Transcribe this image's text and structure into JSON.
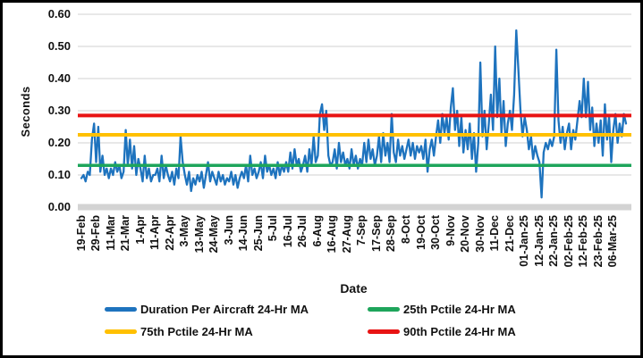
{
  "chart_data": {
    "type": "line",
    "title": "",
    "xlabel": "Date",
    "ylabel": "Seconds",
    "ylim": [
      0,
      0.6
    ],
    "grid": true,
    "legend_position": "bottom",
    "ytick_labels": [
      "0.00",
      "0.10",
      "0.20",
      "0.30",
      "0.40",
      "0.50",
      "0.60"
    ],
    "x_tick_labels": [
      "19-Feb",
      "29-Feb",
      "11-Mar",
      "21-Mar",
      "1-Apr",
      "11-Apr",
      "22-Apr",
      "3-May",
      "13-May",
      "24-May",
      "3-Jun",
      "14-Jun",
      "25-Jun",
      "5-Jul",
      "16-Jul",
      "26-Jul",
      "6-Aug",
      "16-Aug",
      "27-Aug",
      "7-Sep",
      "17-Sep",
      "28-Sep",
      "8-Oct",
      "19-Oct",
      "30-Oct",
      "9-Nov",
      "20-Nov",
      "30-Nov",
      "11-Dec",
      "21-Dec",
      "01-Jan-25",
      "12-Jan-25",
      "22-Jan-25",
      "02-Feb-25",
      "12-Feb-25",
      "23-Feb-25",
      "06-Mar-25"
    ],
    "points_per_tick": 7,
    "series": [
      {
        "name": "Duration Per Aircraft 24-Hr MA",
        "color": "#1E73BE",
        "values": [
          0.09,
          0.1,
          0.08,
          0.11,
          0.1,
          0.21,
          0.26,
          0.14,
          0.25,
          0.11,
          0.16,
          0.1,
          0.12,
          0.09,
          0.12,
          0.1,
          0.14,
          0.11,
          0.13,
          0.09,
          0.11,
          0.24,
          0.13,
          0.21,
          0.12,
          0.19,
          0.1,
          0.15,
          0.12,
          0.08,
          0.16,
          0.09,
          0.12,
          0.08,
          0.1,
          0.1,
          0.12,
          0.08,
          0.16,
          0.09,
          0.13,
          0.1,
          0.08,
          0.11,
          0.07,
          0.12,
          0.09,
          0.22,
          0.14,
          0.1,
          0.07,
          0.11,
          0.05,
          0.09,
          0.07,
          0.1,
          0.08,
          0.11,
          0.06,
          0.1,
          0.14,
          0.08,
          0.11,
          0.09,
          0.07,
          0.11,
          0.08,
          0.1,
          0.07,
          0.09,
          0.08,
          0.11,
          0.07,
          0.1,
          0.06,
          0.09,
          0.11,
          0.09,
          0.13,
          0.08,
          0.16,
          0.1,
          0.12,
          0.09,
          0.11,
          0.14,
          0.09,
          0.16,
          0.11,
          0.13,
          0.1,
          0.12,
          0.09,
          0.14,
          0.1,
          0.13,
          0.11,
          0.14,
          0.11,
          0.17,
          0.12,
          0.18,
          0.13,
          0.15,
          0.11,
          0.13,
          0.16,
          0.11,
          0.18,
          0.13,
          0.22,
          0.14,
          0.16,
          0.29,
          0.32,
          0.24,
          0.3,
          0.16,
          0.13,
          0.14,
          0.18,
          0.12,
          0.2,
          0.14,
          0.17,
          0.13,
          0.15,
          0.12,
          0.18,
          0.13,
          0.16,
          0.12,
          0.15,
          0.13,
          0.2,
          0.14,
          0.21,
          0.15,
          0.18,
          0.13,
          0.16,
          0.22,
          0.14,
          0.23,
          0.16,
          0.2,
          0.14,
          0.29,
          0.17,
          0.14,
          0.21,
          0.16,
          0.19,
          0.15,
          0.18,
          0.21,
          0.16,
          0.2,
          0.15,
          0.19,
          0.17,
          0.19,
          0.15,
          0.21,
          0.11,
          0.18,
          0.21,
          0.16,
          0.22,
          0.27,
          0.2,
          0.29,
          0.23,
          0.28,
          0.21,
          0.31,
          0.37,
          0.24,
          0.3,
          0.19,
          0.28,
          0.17,
          0.24,
          0.18,
          0.26,
          0.15,
          0.23,
          0.11,
          0.2,
          0.45,
          0.22,
          0.3,
          0.18,
          0.26,
          0.35,
          0.24,
          0.5,
          0.28,
          0.4,
          0.23,
          0.33,
          0.19,
          0.26,
          0.3,
          0.24,
          0.35,
          0.55,
          0.43,
          0.3,
          0.22,
          0.28,
          0.24,
          0.18,
          0.22,
          0.15,
          0.19,
          0.16,
          0.14,
          0.03,
          0.17,
          0.2,
          0.18,
          0.21,
          0.19,
          0.22,
          0.49,
          0.27,
          0.2,
          0.25,
          0.18,
          0.23,
          0.26,
          0.18,
          0.24,
          0.21,
          0.27,
          0.33,
          0.28,
          0.4,
          0.28,
          0.39,
          0.24,
          0.31,
          0.19,
          0.26,
          0.2,
          0.27,
          0.16,
          0.32,
          0.21,
          0.28,
          0.14,
          0.24,
          0.29,
          0.2,
          0.26,
          0.22,
          0.29,
          0.26
        ]
      }
    ],
    "reference_lines": [
      {
        "name": "25th Pctile 24-Hr MA",
        "value": 0.13,
        "color": "#1EA55B"
      },
      {
        "name": "75th Pctile 24-Hr MA",
        "value": 0.225,
        "color": "#FFC000"
      },
      {
        "name": "90th Pctile 24-Hr MA",
        "value": 0.285,
        "color": "#E81313"
      }
    ],
    "legend": [
      {
        "label": "Duration Per Aircraft 24-Hr MA",
        "color": "#1E73BE"
      },
      {
        "label": "25th Pctile 24-Hr MA",
        "color": "#1EA55B"
      },
      {
        "label": "75th Pctile 24-Hr MA",
        "color": "#FFC000"
      },
      {
        "label": "90th Pctile 24-Hr MA",
        "color": "#E81313"
      }
    ],
    "colors": {
      "gridline": "#DBDBDB",
      "axis_bar": "#D3D3D3",
      "text": "#111111"
    }
  }
}
